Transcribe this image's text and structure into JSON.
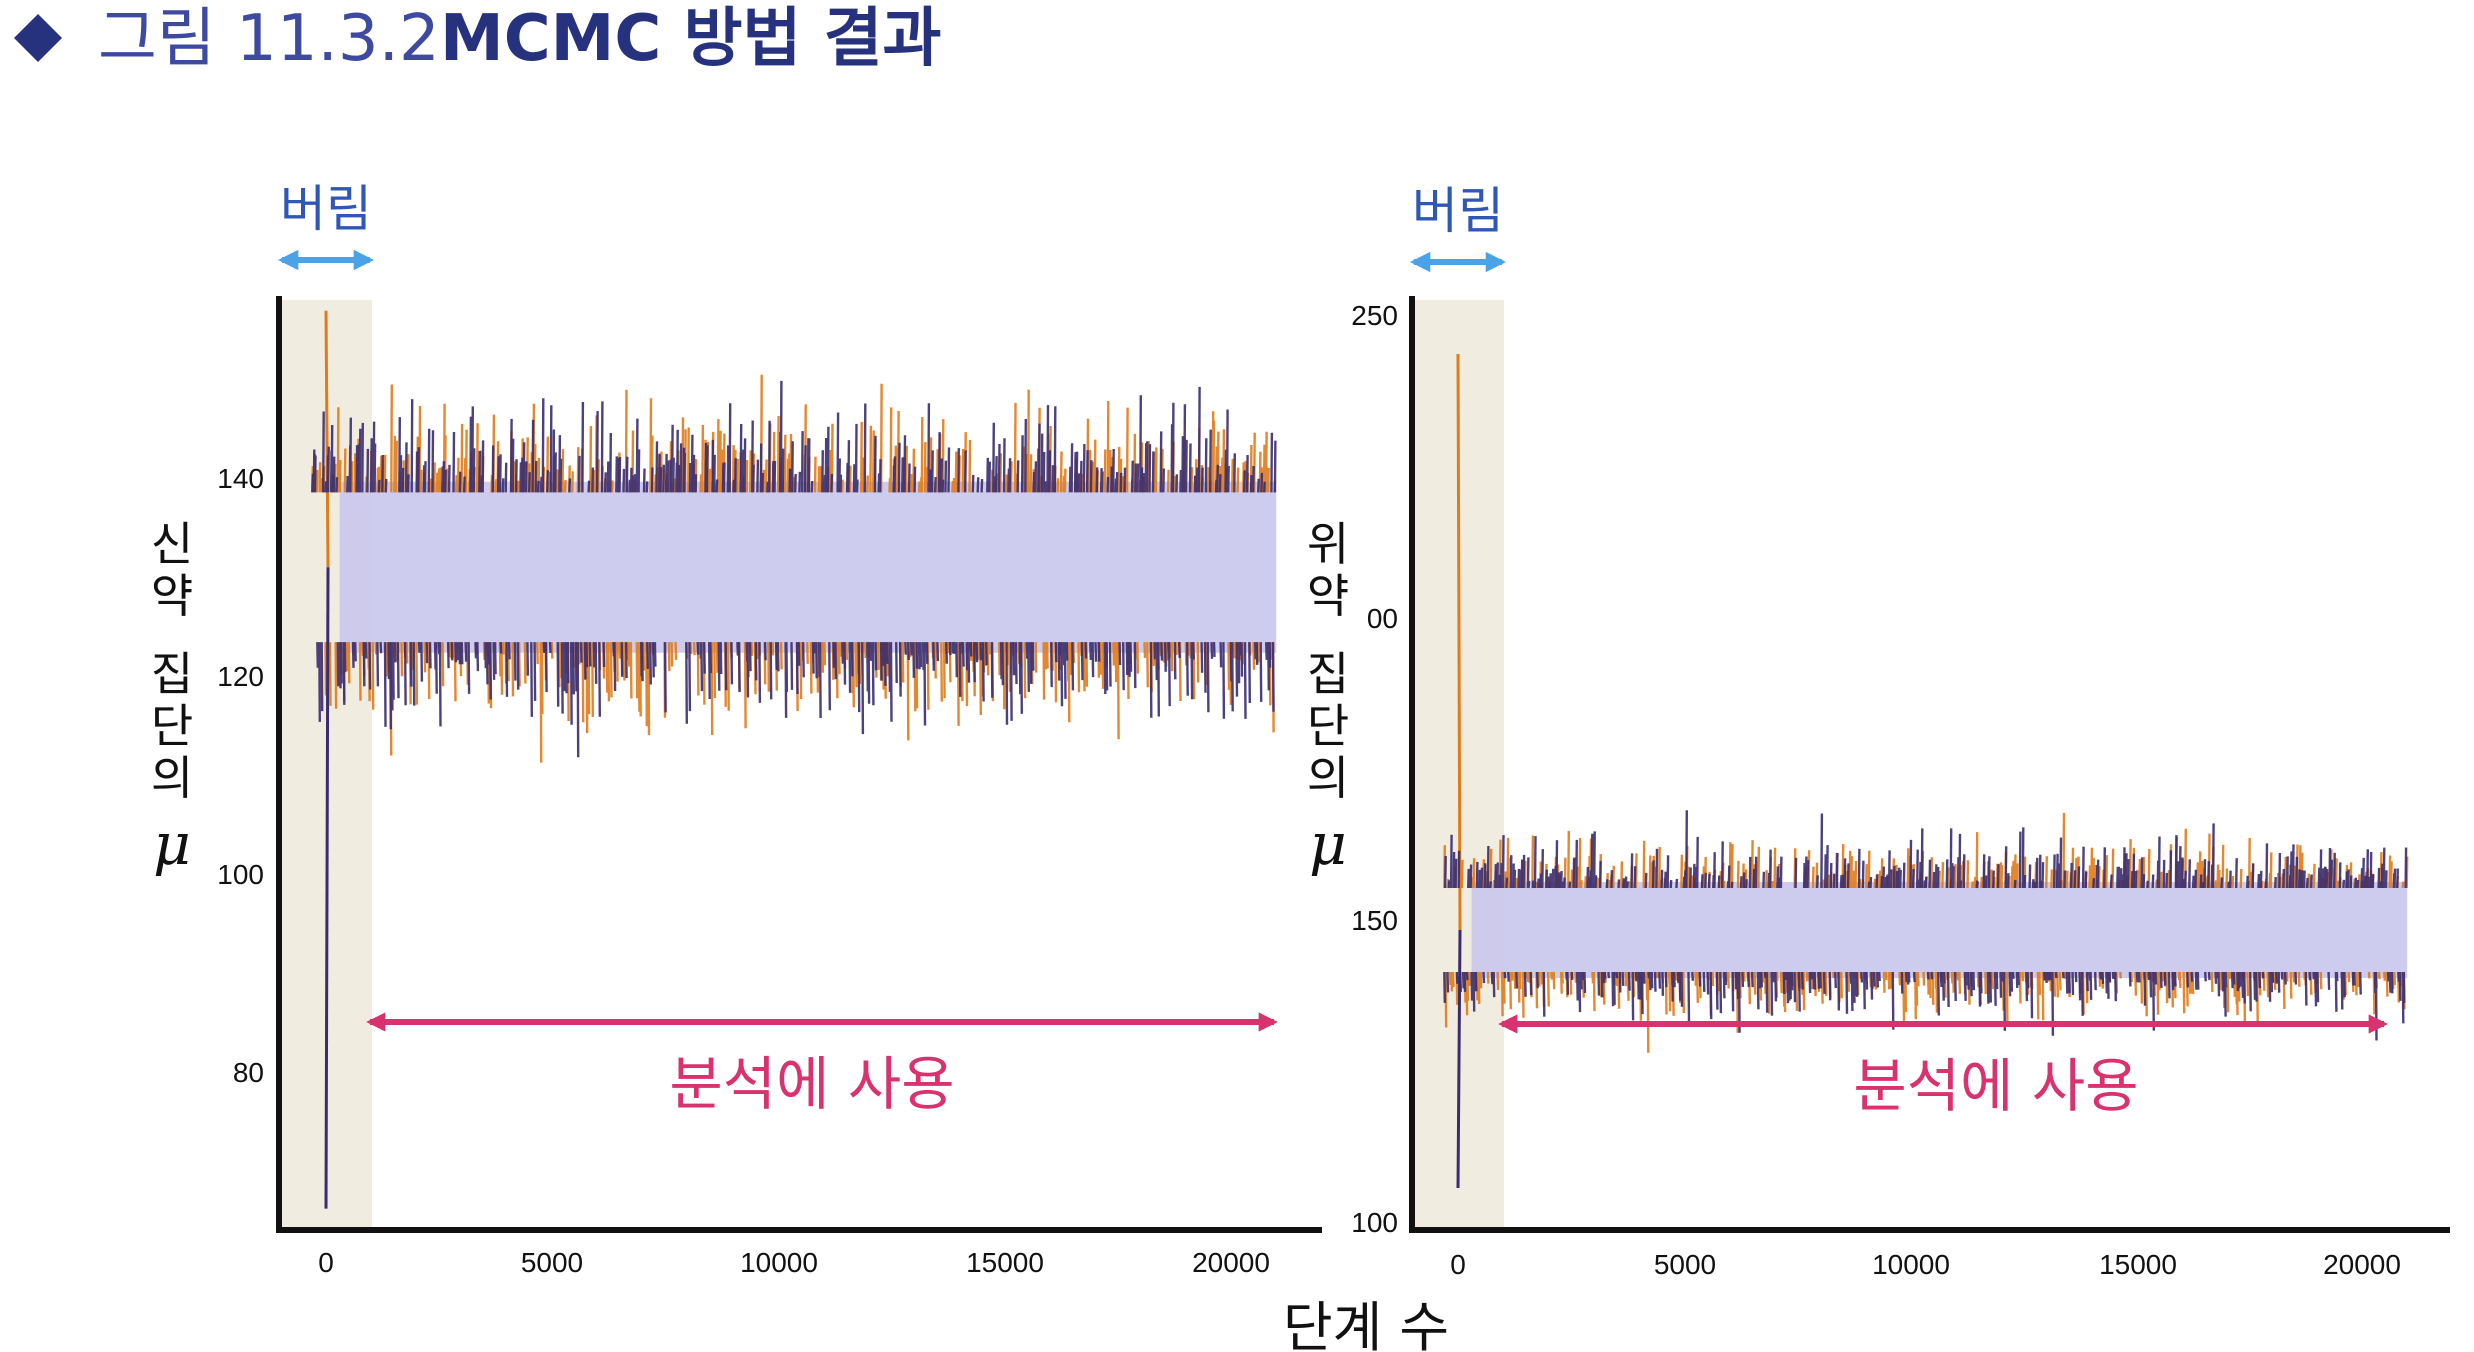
{
  "figure": {
    "number": "그림 11.3.2",
    "title": "MCMC 방법 결과",
    "bullet_color": "#27327e"
  },
  "x_axis_label": "단계 수",
  "annotations": {
    "burn_in": "버림",
    "used": "분석에 사용",
    "burn_color": "#4aa3e6",
    "used_color": "#d8326f"
  },
  "colors": {
    "chain_orange": "#e07b1a",
    "chain_purple": "#3a2c6e",
    "band_fill": "#c9c6ec",
    "burn_shade": "#f1ece0"
  },
  "chart_data": [
    {
      "type": "line",
      "panel": "left",
      "ylabel_chars": [
        "신",
        "약",
        " ",
        "집",
        "단",
        "의"
      ],
      "ylabel_symbol": "μ",
      "xlim": [
        -1000,
        21000
      ],
      "ylim": [
        68,
        155
      ],
      "x_ticks": [
        0,
        5000,
        10000,
        15000,
        20000
      ],
      "x_tick_labels": [
        "0",
        "5000",
        "10000",
        "15000",
        "20000"
      ],
      "y_ticks": [
        80,
        100,
        120,
        140
      ],
      "y_tick_labels": [
        "80",
        "100",
        "120",
        "140"
      ],
      "burn_in_range": [
        0,
        1000
      ],
      "n_steps": 21000,
      "series": [
        {
          "color": "orange",
          "start": 154,
          "mean": 130,
          "band": [
            122,
            138
          ],
          "spread": 4.2
        },
        {
          "color": "purple",
          "start": 70,
          "mean": 130,
          "band": [
            122,
            138
          ],
          "spread": 4.2
        }
      ]
    },
    {
      "type": "line",
      "panel": "right",
      "ylabel_chars": [
        "위",
        "약",
        " ",
        "집",
        "단",
        "의"
      ],
      "ylabel_symbol": "μ",
      "xlim": [
        -1000,
        21000
      ],
      "ylim": [
        100,
        255
      ],
      "x_ticks": [
        0,
        5000,
        10000,
        15000,
        20000
      ],
      "x_tick_labels": [
        "0",
        "5000",
        "10000",
        "15000",
        "20000"
      ],
      "y_ticks": [
        100,
        150,
        250
      ],
      "y_tick_labels": [
        "100",
        "150",
        "250"
      ],
      "y_partial_tick": {
        "value": 200,
        "label": "00"
      },
      "burn_in_range": [
        0,
        1000
      ],
      "n_steps": 21000,
      "series": [
        {
          "color": "orange",
          "start": 246,
          "mean": 150,
          "band": [
            142,
            158
          ],
          "spread": 4.4
        },
        {
          "color": "purple",
          "start": 107,
          "mean": 150,
          "band": [
            142,
            158
          ],
          "spread": 4.4
        }
      ]
    }
  ]
}
